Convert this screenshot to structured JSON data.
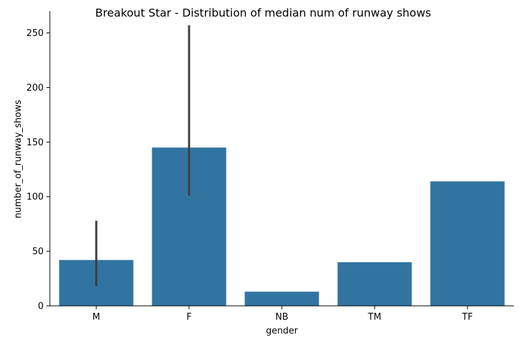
{
  "chart_data": {
    "type": "bar",
    "title": "Breakout Star - Distribution of median num of runway shows",
    "xlabel": "gender",
    "ylabel": "number_of_runway_shows",
    "categories": [
      "M",
      "F",
      "NB",
      "TM",
      "TF"
    ],
    "values": [
      42,
      145,
      13,
      40,
      114
    ],
    "error_bars": [
      {
        "category": "M",
        "low": 18,
        "high": 78
      },
      {
        "category": "F",
        "low": 101,
        "high": 257
      },
      {
        "category": "NB",
        "low": null,
        "high": null
      },
      {
        "category": "TM",
        "low": null,
        "high": null
      },
      {
        "category": "TF",
        "low": null,
        "high": null
      }
    ],
    "yticks": [
      0,
      50,
      100,
      150,
      200,
      250
    ],
    "ylim": [
      0,
      270
    ],
    "grid": false,
    "colors": {
      "bar": "#3274a1",
      "error_bar": "#3d3d3d",
      "axis": "#000000"
    }
  }
}
